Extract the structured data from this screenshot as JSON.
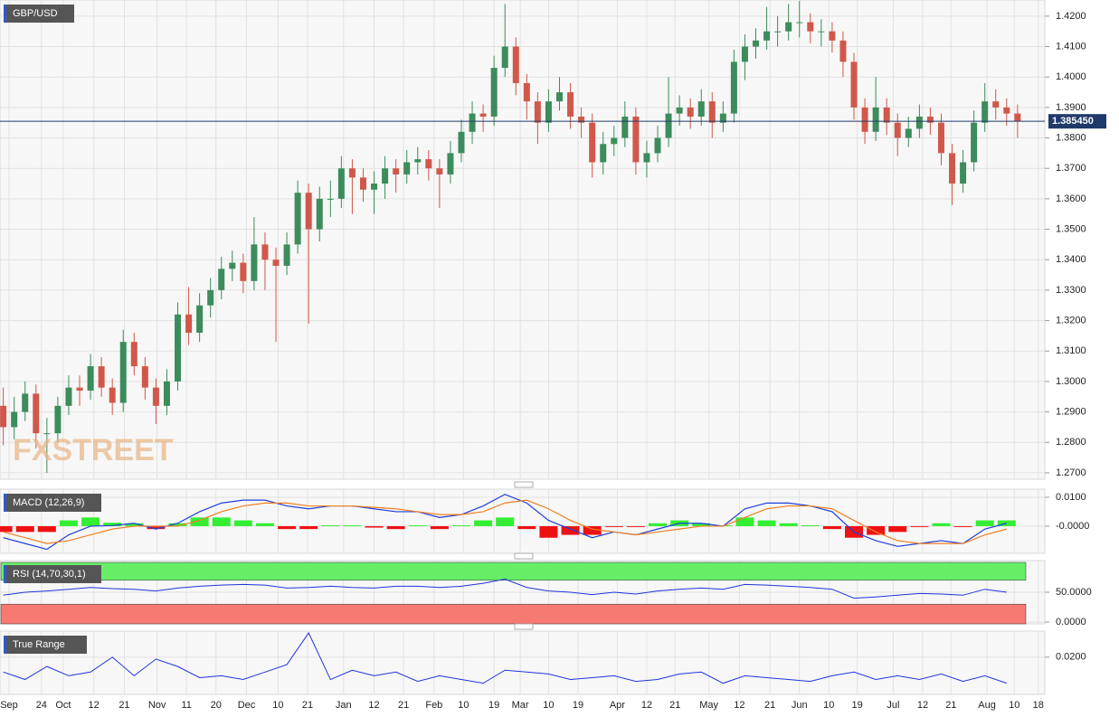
{
  "chart_data": [
    {
      "type": "candlestick",
      "title": "GBP/USD",
      "watermark": "FXSTREET",
      "up_color": "#3c8c5c",
      "down_color": "#d0584a",
      "xlim": [
        -0.3,
        95.5
      ],
      "ylim": [
        1.2679,
        1.4253
      ],
      "yticks": [
        {
          "value": 1.27,
          "label": "1.2700"
        },
        {
          "value": 1.28,
          "label": "1.2800"
        },
        {
          "value": 1.29,
          "label": "1.2900"
        },
        {
          "value": 1.3,
          "label": "1.3000"
        },
        {
          "value": 1.31,
          "label": "1.3100"
        },
        {
          "value": 1.32,
          "label": "1.3200"
        },
        {
          "value": 1.33,
          "label": "1.3300"
        },
        {
          "value": 1.34,
          "label": "1.3400"
        },
        {
          "value": 1.35,
          "label": "1.3500"
        },
        {
          "value": 1.36,
          "label": "1.3600"
        },
        {
          "value": 1.37,
          "label": "1.3700"
        },
        {
          "value": 1.38,
          "label": "1.3800"
        },
        {
          "value": 1.39,
          "label": "1.3900"
        },
        {
          "value": 1.4,
          "label": "1.4000"
        },
        {
          "value": 1.41,
          "label": "1.4100"
        },
        {
          "value": 1.42,
          "label": "1.4200"
        }
      ],
      "last_price": {
        "value": 1.38545,
        "label": "1.385450"
      },
      "candles": [
        [
          1.292,
          1.298,
          1.279,
          1.285
        ],
        [
          1.285,
          1.295,
          1.281,
          1.29
        ],
        [
          1.29,
          1.3,
          1.287,
          1.296
        ],
        [
          1.296,
          1.299,
          1.278,
          1.283
        ],
        [
          1.283,
          1.288,
          1.27,
          1.283
        ],
        [
          1.283,
          1.295,
          1.28,
          1.292
        ],
        [
          1.292,
          1.302,
          1.289,
          1.298
        ],
        [
          1.298,
          1.302,
          1.292,
          1.297
        ],
        [
          1.297,
          1.309,
          1.294,
          1.305
        ],
        [
          1.305,
          1.308,
          1.295,
          1.298
        ],
        [
          1.298,
          1.301,
          1.289,
          1.293
        ],
        [
          1.293,
          1.317,
          1.29,
          1.313
        ],
        [
          1.313,
          1.316,
          1.302,
          1.305
        ],
        [
          1.305,
          1.308,
          1.294,
          1.298
        ],
        [
          1.298,
          1.301,
          1.286,
          1.292
        ],
        [
          1.292,
          1.304,
          1.289,
          1.3
        ],
        [
          1.3,
          1.326,
          1.297,
          1.322
        ],
        [
          1.322,
          1.331,
          1.312,
          1.316
        ],
        [
          1.316,
          1.329,
          1.313,
          1.325
        ],
        [
          1.325,
          1.334,
          1.321,
          1.33
        ],
        [
          1.33,
          1.341,
          1.327,
          1.337
        ],
        [
          1.337,
          1.343,
          1.333,
          1.339
        ],
        [
          1.339,
          1.342,
          1.329,
          1.333
        ],
        [
          1.333,
          1.354,
          1.33,
          1.345
        ],
        [
          1.345,
          1.349,
          1.33,
          1.34
        ],
        [
          1.34,
          1.344,
          1.313,
          1.338
        ],
        [
          1.338,
          1.349,
          1.335,
          1.345
        ],
        [
          1.345,
          1.366,
          1.342,
          1.362
        ],
        [
          1.362,
          1.365,
          1.319,
          1.35
        ],
        [
          1.35,
          1.364,
          1.346,
          1.36
        ],
        [
          1.36,
          1.366,
          1.354,
          1.36
        ],
        [
          1.36,
          1.374,
          1.357,
          1.37
        ],
        [
          1.37,
          1.373,
          1.355,
          1.367
        ],
        [
          1.367,
          1.37,
          1.359,
          1.363
        ],
        [
          1.363,
          1.369,
          1.355,
          1.365
        ],
        [
          1.365,
          1.374,
          1.36,
          1.37
        ],
        [
          1.37,
          1.373,
          1.362,
          1.368
        ],
        [
          1.368,
          1.376,
          1.365,
          1.372
        ],
        [
          1.372,
          1.377,
          1.368,
          1.373
        ],
        [
          1.373,
          1.376,
          1.366,
          1.37
        ],
        [
          1.37,
          1.373,
          1.357,
          1.368
        ],
        [
          1.368,
          1.379,
          1.365,
          1.375
        ],
        [
          1.375,
          1.386,
          1.372,
          1.382
        ],
        [
          1.382,
          1.392,
          1.378,
          1.388
        ],
        [
          1.388,
          1.391,
          1.382,
          1.387
        ],
        [
          1.387,
          1.407,
          1.384,
          1.403
        ],
        [
          1.403,
          1.424,
          1.4,
          1.41
        ],
        [
          1.41,
          1.413,
          1.394,
          1.398
        ],
        [
          1.398,
          1.401,
          1.386,
          1.392
        ],
        [
          1.392,
          1.395,
          1.378,
          1.385
        ],
        [
          1.385,
          1.396,
          1.382,
          1.392
        ],
        [
          1.392,
          1.4,
          1.389,
          1.395
        ],
        [
          1.395,
          1.398,
          1.383,
          1.387
        ],
        [
          1.387,
          1.39,
          1.38,
          1.385
        ],
        [
          1.385,
          1.388,
          1.367,
          1.372
        ],
        [
          1.372,
          1.382,
          1.368,
          1.378
        ],
        [
          1.378,
          1.384,
          1.374,
          1.38
        ],
        [
          1.38,
          1.392,
          1.377,
          1.387
        ],
        [
          1.387,
          1.39,
          1.368,
          1.372
        ],
        [
          1.372,
          1.379,
          1.367,
          1.375
        ],
        [
          1.375,
          1.384,
          1.372,
          1.38
        ],
        [
          1.38,
          1.4,
          1.377,
          1.388
        ],
        [
          1.388,
          1.394,
          1.384,
          1.39
        ],
        [
          1.39,
          1.393,
          1.383,
          1.387
        ],
        [
          1.387,
          1.396,
          1.384,
          1.392
        ],
        [
          1.392,
          1.395,
          1.38,
          1.385
        ],
        [
          1.385,
          1.392,
          1.382,
          1.388
        ],
        [
          1.388,
          1.409,
          1.385,
          1.405
        ],
        [
          1.405,
          1.414,
          1.399,
          1.41
        ],
        [
          1.41,
          1.416,
          1.406,
          1.412
        ],
        [
          1.412,
          1.423,
          1.409,
          1.415
        ],
        [
          1.415,
          1.42,
          1.41,
          1.415
        ],
        [
          1.415,
          1.424,
          1.412,
          1.418
        ],
        [
          1.418,
          1.425,
          1.413,
          1.418
        ],
        [
          1.418,
          1.421,
          1.411,
          1.415
        ],
        [
          1.415,
          1.419,
          1.41,
          1.415
        ],
        [
          1.415,
          1.418,
          1.408,
          1.412
        ],
        [
          1.412,
          1.415,
          1.4,
          1.405
        ],
        [
          1.405,
          1.408,
          1.386,
          1.39
        ],
        [
          1.39,
          1.393,
          1.378,
          1.382
        ],
        [
          1.382,
          1.4,
          1.379,
          1.39
        ],
        [
          1.39,
          1.393,
          1.381,
          1.385
        ],
        [
          1.385,
          1.388,
          1.374,
          1.38
        ],
        [
          1.38,
          1.387,
          1.377,
          1.383
        ],
        [
          1.383,
          1.391,
          1.38,
          1.387
        ],
        [
          1.387,
          1.39,
          1.381,
          1.385
        ],
        [
          1.385,
          1.388,
          1.371,
          1.375
        ],
        [
          1.375,
          1.378,
          1.358,
          1.365
        ],
        [
          1.365,
          1.376,
          1.362,
          1.372
        ],
        [
          1.372,
          1.389,
          1.369,
          1.385
        ],
        [
          1.385,
          1.398,
          1.382,
          1.392
        ],
        [
          1.392,
          1.396,
          1.386,
          1.39
        ],
        [
          1.39,
          1.393,
          1.384,
          1.388
        ],
        [
          1.388,
          1.391,
          1.38,
          1.3855
        ]
      ]
    },
    {
      "type": "macd",
      "title": "MACD (12,26,9)",
      "xlim": [
        -0.3,
        95.5
      ],
      "ylim": [
        -0.0094,
        0.0128
      ],
      "yticks": [
        {
          "value": 0.01,
          "label": "0.0100"
        },
        {
          "value": 0,
          "label": "-0.0000"
        }
      ],
      "x": [
        0,
        2,
        4,
        6,
        8,
        10,
        12,
        14,
        16,
        18,
        20,
        22,
        24,
        26,
        28,
        30,
        32,
        34,
        36,
        38,
        40,
        42,
        44,
        46,
        48,
        50,
        52,
        54,
        56,
        58,
        60,
        62,
        64,
        66,
        68,
        70,
        72,
        74,
        76,
        78,
        80,
        82,
        84,
        86,
        88,
        90,
        92
      ],
      "series": [
        {
          "name": "MACD",
          "color": "#1f3fdd",
          "values": [
            -0.004,
            -0.006,
            -0.008,
            -0.003,
            0.0,
            0.0002,
            0.001,
            -0.001,
            0.001,
            0.005,
            0.008,
            0.009,
            0.009,
            0.007,
            0.006,
            0.007,
            0.007,
            0.006,
            0.005,
            0.005,
            0.003,
            0.004,
            0.007,
            0.011,
            0.008,
            0.002,
            -0.001,
            -0.004,
            -0.002,
            -0.003,
            -0.001,
            0.001,
            0.001,
            0.0,
            0.006,
            0.008,
            0.008,
            0.007,
            0.005,
            -0.002,
            -0.005,
            -0.007,
            -0.006,
            -0.005,
            -0.006,
            -0.001,
            0.001
          ]
        },
        {
          "name": "Signal",
          "color": "#f07f20",
          "values": [
            -0.002,
            -0.004,
            -0.006,
            -0.005,
            -0.003,
            -0.001,
            0.0,
            0.0,
            0.0,
            0.002,
            0.005,
            0.007,
            0.008,
            0.008,
            0.007,
            0.007,
            0.007,
            0.0065,
            0.006,
            0.005,
            0.004,
            0.004,
            0.005,
            0.008,
            0.009,
            0.006,
            0.002,
            -0.001,
            -0.002,
            -0.003,
            -0.002,
            -0.001,
            0.0,
            0.0,
            0.003,
            0.006,
            0.007,
            0.007,
            0.006,
            0.002,
            -0.002,
            -0.005,
            -0.006,
            -0.006,
            -0.006,
            -0.003,
            -0.001
          ]
        }
      ],
      "histogram": {
        "up_color": "#33ee33",
        "down_color": "#ee1111",
        "values": [
          -0.002,
          -0.002,
          -0.002,
          0.002,
          0.003,
          0.0012,
          0.001,
          -0.001,
          0.001,
          0.003,
          0.003,
          0.002,
          0.001,
          -0.001,
          -0.001,
          0.0003,
          0.0003,
          -0.0005,
          -0.001,
          0.0003,
          -0.001,
          0.0003,
          0.002,
          0.003,
          -0.001,
          -0.004,
          -0.003,
          -0.003,
          -0.0003,
          -0.0003,
          0.001,
          0.002,
          0.001,
          0.0003,
          0.003,
          0.002,
          0.001,
          0.0003,
          -0.001,
          -0.004,
          -0.003,
          -0.002,
          -0.0003,
          0.001,
          -0.0003,
          0.002,
          0.002
        ]
      }
    },
    {
      "type": "rsi",
      "title": "RSI (14,70,30,1)",
      "xlim": [
        -0.3,
        95.5
      ],
      "ylim": [
        -3,
        103
      ],
      "overbought": 70,
      "oversold": 30,
      "yticks": [
        {
          "value": 50,
          "label": "50.0000"
        },
        {
          "value": 0,
          "label": "0.0000"
        }
      ],
      "x": [
        0,
        2,
        4,
        6,
        8,
        10,
        12,
        14,
        16,
        18,
        20,
        22,
        24,
        26,
        28,
        30,
        32,
        34,
        36,
        38,
        40,
        42,
        44,
        46,
        48,
        50,
        52,
        54,
        56,
        58,
        60,
        62,
        64,
        66,
        68,
        70,
        72,
        74,
        76,
        78,
        80,
        82,
        84,
        86,
        88,
        90,
        92
      ],
      "color": "#2233dd",
      "values": [
        45,
        50,
        52,
        55,
        58,
        56,
        55,
        52,
        57,
        60,
        62,
        63,
        62,
        57,
        58,
        60,
        58,
        57,
        60,
        60,
        58,
        60,
        65,
        72,
        58,
        52,
        50,
        46,
        50,
        47,
        52,
        55,
        57,
        55,
        63,
        62,
        60,
        58,
        55,
        40,
        42,
        45,
        48,
        47,
        45,
        55,
        50
      ]
    },
    {
      "type": "line",
      "title": "True Range",
      "xlim": [
        -0.3,
        95.5
      ],
      "ylim": [
        0,
        0.034
      ],
      "yticks": [
        {
          "value": 0.02,
          "label": "0.0200"
        }
      ],
      "xticks": [
        {
          "value": 0.53,
          "label": "Sep"
        },
        {
          "value": 3.5,
          "label": "24"
        },
        {
          "value": 5.5,
          "label": "Oct"
        },
        {
          "value": 8.3,
          "label": "12"
        },
        {
          "value": 11.1,
          "label": "21"
        },
        {
          "value": 14.1,
          "label": "Nov"
        },
        {
          "value": 16.8,
          "label": "11"
        },
        {
          "value": 19.5,
          "label": "20"
        },
        {
          "value": 22.3,
          "label": "Dec"
        },
        {
          "value": 25.2,
          "label": "10"
        },
        {
          "value": 27.9,
          "label": "21"
        },
        {
          "value": 31.2,
          "label": "Jan"
        },
        {
          "value": 34.0,
          "label": "12"
        },
        {
          "value": 36.7,
          "label": "21"
        },
        {
          "value": 39.5,
          "label": "Feb"
        },
        {
          "value": 42.2,
          "label": "10"
        },
        {
          "value": 45.0,
          "label": "19"
        },
        {
          "value": 47.4,
          "label": "Mar"
        },
        {
          "value": 50.0,
          "label": "10"
        },
        {
          "value": 52.7,
          "label": "19"
        },
        {
          "value": 56.3,
          "label": "Apr"
        },
        {
          "value": 59.0,
          "label": "12"
        },
        {
          "value": 61.6,
          "label": "21"
        },
        {
          "value": 64.7,
          "label": "May"
        },
        {
          "value": 67.5,
          "label": "12"
        },
        {
          "value": 70.3,
          "label": "21"
        },
        {
          "value": 73.0,
          "label": "Jun"
        },
        {
          "value": 75.7,
          "label": "10"
        },
        {
          "value": 78.3,
          "label": "19"
        },
        {
          "value": 81.6,
          "label": "Jul"
        },
        {
          "value": 84.3,
          "label": "12"
        },
        {
          "value": 86.9,
          "label": "21"
        },
        {
          "value": 90.2,
          "label": "Aug"
        },
        {
          "value": 92.7,
          "label": "10"
        },
        {
          "value": 94.9,
          "label": "18"
        }
      ],
      "x": [
        0,
        2,
        4,
        6,
        8,
        10,
        12,
        14,
        16,
        18,
        20,
        22,
        24,
        26,
        28,
        30,
        32,
        34,
        36,
        38,
        40,
        42,
        44,
        46,
        48,
        50,
        52,
        54,
        56,
        58,
        60,
        62,
        64,
        66,
        68,
        70,
        72,
        74,
        76,
        78,
        80,
        82,
        84,
        86,
        88,
        90,
        92
      ],
      "color": "#2233dd",
      "values": [
        0.012,
        0.008,
        0.015,
        0.01,
        0.012,
        0.02,
        0.01,
        0.019,
        0.015,
        0.009,
        0.01,
        0.008,
        0.012,
        0.016,
        0.033,
        0.008,
        0.013,
        0.01,
        0.012,
        0.007,
        0.01,
        0.008,
        0.006,
        0.013,
        0.012,
        0.011,
        0.008,
        0.009,
        0.01,
        0.007,
        0.008,
        0.011,
        0.012,
        0.006,
        0.01,
        0.009,
        0.008,
        0.007,
        0.01,
        0.012,
        0.008,
        0.01,
        0.008,
        0.011,
        0.007,
        0.01,
        0.006
      ]
    }
  ]
}
